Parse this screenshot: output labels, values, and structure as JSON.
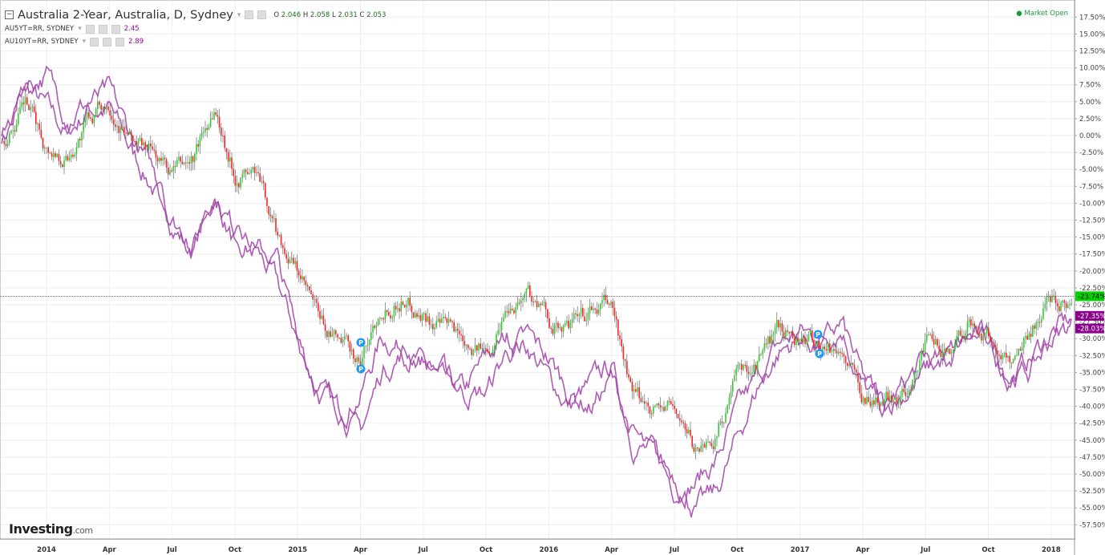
{
  "legend": {
    "main_title": "Australia 2-Year, Australia, D, Sydney",
    "ohlc": {
      "o_label": "O",
      "o": "2.046",
      "h_label": "H",
      "h": "2.058",
      "l_label": "L",
      "l": "2.031",
      "c_label": "C",
      "c": "2.053"
    },
    "series2": {
      "name": "AU5YT=RR, SYDNEY",
      "value": "2.45"
    },
    "series3": {
      "name": "AU10YT=RR, SYDNEY",
      "value": "2.89"
    }
  },
  "status": "Market Open",
  "logo": {
    "main": "Investing",
    "suffix": ".com"
  },
  "colors": {
    "up": "#2bd12b",
    "down": "#ff2020",
    "purple": "#a040a8",
    "price_badge": "#00d400",
    "purple_badge": "#8b008b",
    "market_open": "#1c9a3c"
  },
  "chart_data": {
    "type": "line",
    "ylabel_format": "percent change",
    "ylim": [
      -60,
      20
    ],
    "yticks": [
      "17.50%",
      "15.00%",
      "12.50%",
      "10.00%",
      "7.50%",
      "5.00%",
      "2.50%",
      "0.00%",
      "-2.50%",
      "-5.00%",
      "-7.50%",
      "-10.00%",
      "-12.50%",
      "-15.00%",
      "-17.50%",
      "-20.00%",
      "-22.50%",
      "-25.00%",
      "-27.50%",
      "-30.00%",
      "-32.50%",
      "-35.00%",
      "-37.50%",
      "-40.00%",
      "-42.50%",
      "-45.00%",
      "-47.50%",
      "-50.00%",
      "-52.50%",
      "-55.00%",
      "-57.50%"
    ],
    "xticks": [
      "2014",
      "Apr",
      "Jul",
      "Oct",
      "2015",
      "Apr",
      "Jul",
      "Oct",
      "2016",
      "Apr",
      "Jul",
      "Oct",
      "2017",
      "Apr",
      "Jul",
      "Oct",
      "2018"
    ],
    "x": [
      "Nov 2013",
      "Dec 2013",
      "Jan 2014",
      "Feb 2014",
      "Mar 2014",
      "Apr 2014",
      "May 2014",
      "Jun 2014",
      "Jul 2014",
      "Aug 2014",
      "Sep 2014",
      "Oct 2014",
      "Nov 2014",
      "Dec 2014",
      "Jan 2015",
      "Feb 2015",
      "Mar 2015",
      "Apr 2015",
      "May 2015",
      "Jun 2015",
      "Jul 2015",
      "Aug 2015",
      "Sep 2015",
      "Oct 2015",
      "Nov 2015",
      "Dec 2015",
      "Jan 2016",
      "Feb 2016",
      "Mar 2016",
      "Apr 2016",
      "May 2016",
      "Jun 2016",
      "Jul 2016",
      "Aug 2016",
      "Sep 2016",
      "Oct 2016",
      "Nov 2016",
      "Dec 2016",
      "Jan 2017",
      "Feb 2017",
      "Mar 2017",
      "Apr 2017",
      "May 2017",
      "Jun 2017",
      "Jul 2017",
      "Aug 2017",
      "Sep 2017",
      "Oct 2017",
      "Nov 2017",
      "Dec 2017",
      "Jan 2018",
      "Feb 2018"
    ],
    "series": [
      {
        "name": "Australia 2-Year",
        "style": "candlestick",
        "last_label": "-23.74%",
        "values": [
          0,
          4.6,
          -1.9,
          -3,
          2.2,
          5.2,
          -0.7,
          -2.5,
          -5.5,
          -3.7,
          4.6,
          -5.5,
          -5.5,
          -14.3,
          -20.3,
          -27.4,
          -30.9,
          -33.3,
          -25,
          -23.8,
          -26.2,
          -28.6,
          -29.7,
          -32.1,
          -25,
          -22.6,
          -27.4,
          -28.6,
          -26.2,
          -25,
          -39.2,
          -39.8,
          -40.4,
          -46.3,
          -44,
          -35.7,
          -33.3,
          -28.6,
          -29.7,
          -30.9,
          -32.1,
          -38,
          -39.2,
          -38,
          -30.9,
          -32.1,
          -27.4,
          -29.7,
          -33.3,
          -28.6,
          -23.8,
          -23.74
        ]
      },
      {
        "name": "AU5YT=RR, SYDNEY",
        "style": "line",
        "last_label": "-27.35%",
        "values": [
          0,
          7,
          4,
          0,
          4,
          4,
          -2,
          -7,
          -13,
          -17,
          -9,
          -16,
          -17,
          -22,
          -30,
          -38,
          -41,
          -38,
          -30,
          -31,
          -34,
          -37,
          -38,
          -33,
          -30,
          -31,
          -36,
          -40,
          -37,
          -34,
          -45,
          -47,
          -52,
          -51,
          -48,
          -41,
          -36,
          -31,
          -29,
          -30,
          -28,
          -37,
          -41,
          -37,
          -33,
          -34,
          -28,
          -31,
          -36,
          -33,
          -29,
          -27.35
        ]
      },
      {
        "name": "AU10YT=RR, SYDNEY",
        "style": "line",
        "last_label": "-28.03%",
        "values": [
          0,
          8,
          9,
          3,
          5,
          6,
          0,
          -5,
          -12,
          -16,
          -8,
          -14,
          -17,
          -18,
          -30,
          -37,
          -40,
          -44,
          -35,
          -32,
          -33,
          -35,
          -38,
          -38,
          -32,
          -30,
          -33,
          -38,
          -40,
          -36,
          -44,
          -48,
          -50,
          -55,
          -53,
          -45,
          -37,
          -32,
          -30,
          -31,
          -28,
          -36,
          -40,
          -38,
          -35,
          -33,
          -30,
          -30,
          -35,
          -35,
          -30,
          -28.03
        ]
      }
    ],
    "markers": [
      "P",
      "P",
      "P",
      "P"
    ],
    "grid": true,
    "axis_position": "right"
  }
}
